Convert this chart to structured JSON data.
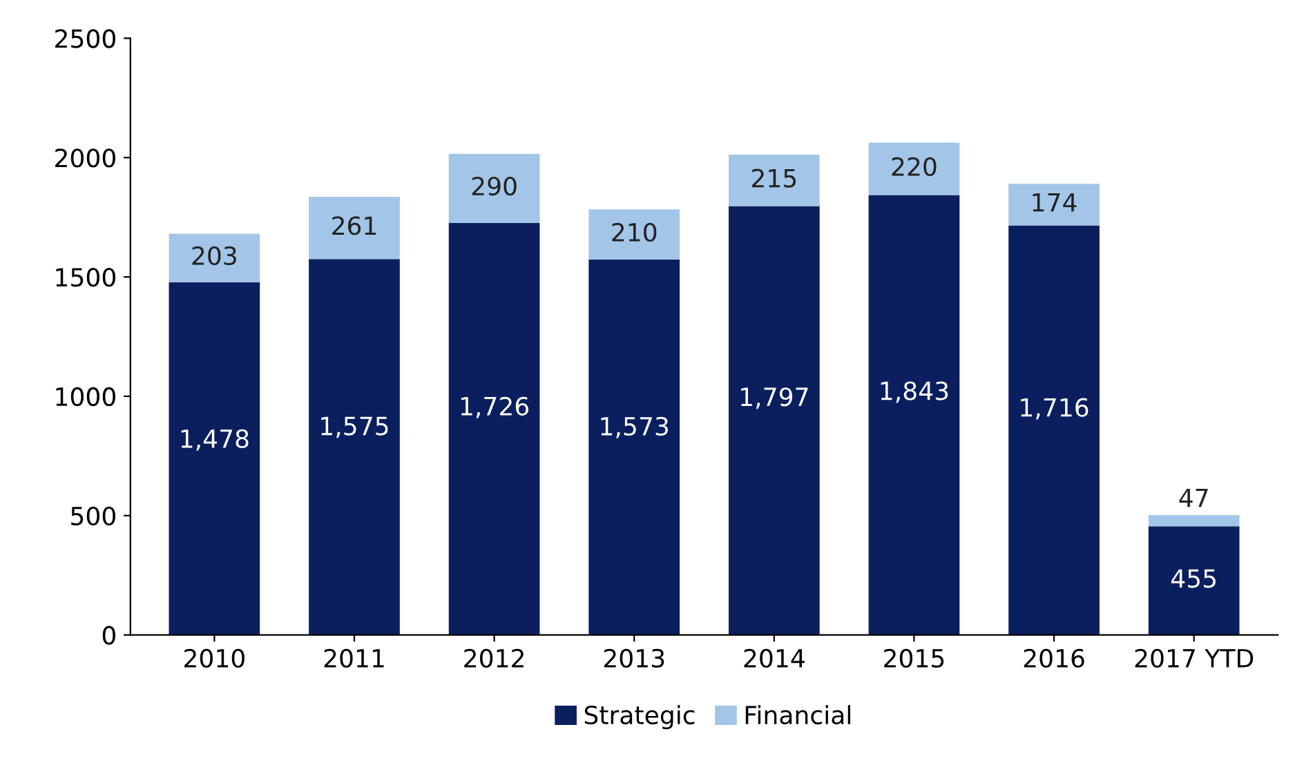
{
  "chart_data": {
    "type": "bar",
    "stacked": true,
    "categories": [
      "2010",
      "2011",
      "2012",
      "2013",
      "2014",
      "2015",
      "2016",
      "2017 YTD"
    ],
    "series": [
      {
        "name": "Strategic",
        "color": "#0b1f5e",
        "values": [
          1478,
          1575,
          1726,
          1573,
          1797,
          1843,
          1716,
          455
        ],
        "value_labels": [
          "1,478",
          "1,575",
          "1,726",
          "1,573",
          "1,797",
          "1,843",
          "1,716",
          "455"
        ]
      },
      {
        "name": "Financial",
        "color": "#a3c6e8",
        "values": [
          203,
          261,
          290,
          210,
          215,
          220,
          174,
          47
        ],
        "value_labels": [
          "203",
          "261",
          "290",
          "210",
          "215",
          "220",
          "174",
          "47"
        ]
      }
    ],
    "ylim": [
      0,
      2500
    ],
    "yticks": [
      0,
      500,
      1000,
      1500,
      2000,
      2500
    ],
    "grid": false,
    "legend": "bottom"
  }
}
